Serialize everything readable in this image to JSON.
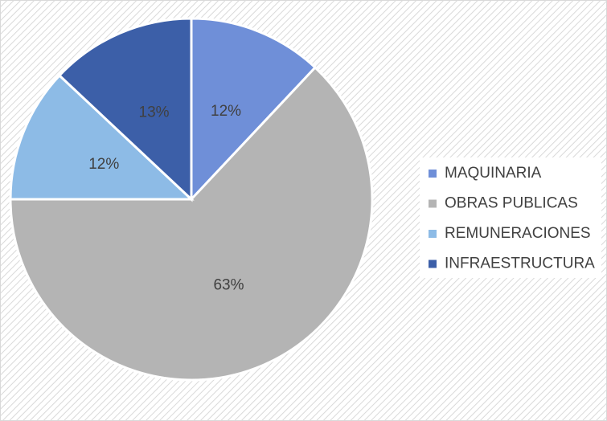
{
  "chart_data": {
    "type": "pie",
    "categories": [
      "MAQUINARIA",
      "OBRAS PUBLICAS",
      "REMUNERACIONES",
      "INFRAESTRUCTURA"
    ],
    "values": [
      12,
      63,
      12,
      13
    ],
    "value_labels": [
      "12%",
      "63%",
      "12%",
      "13%"
    ],
    "colors": [
      "#6f8fd8",
      "#b4b4b4",
      "#8dbbe6",
      "#3c5fa8"
    ],
    "legend": "right"
  }
}
